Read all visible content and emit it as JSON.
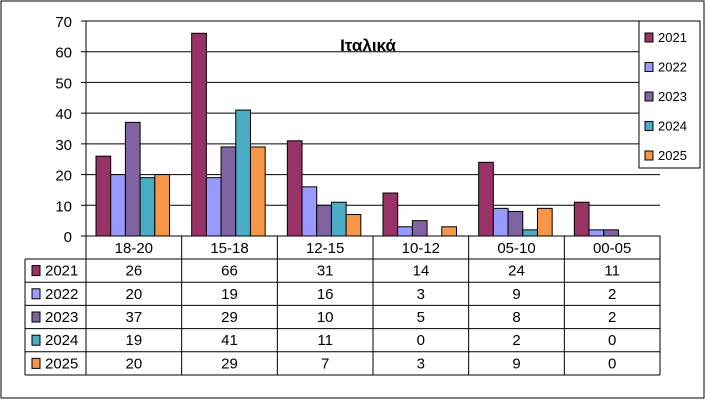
{
  "chart_data": {
    "type": "bar",
    "title": "Ιταλικά",
    "categories": [
      "18-20",
      "15-18",
      "12-15",
      "10-12",
      "05-10",
      "00-05"
    ],
    "series": [
      {
        "name": "2021",
        "color": "#993366",
        "values": [
          26,
          66,
          31,
          14,
          24,
          11
        ]
      },
      {
        "name": "2022",
        "color": "#9999FF",
        "values": [
          20,
          19,
          16,
          3,
          9,
          2
        ]
      },
      {
        "name": "2023",
        "color": "#8064A2",
        "values": [
          37,
          29,
          10,
          5,
          8,
          2
        ]
      },
      {
        "name": "2024",
        "color": "#4BACC6",
        "values": [
          19,
          41,
          11,
          0,
          2,
          0
        ]
      },
      {
        "name": "2025",
        "color": "#F79646",
        "values": [
          20,
          29,
          7,
          3,
          9,
          0
        ]
      }
    ],
    "ylim": [
      0,
      70
    ],
    "yticks": [
      0,
      10,
      20,
      30,
      40,
      50,
      60,
      70
    ],
    "grid": true,
    "legend": "right",
    "data_table": true
  }
}
